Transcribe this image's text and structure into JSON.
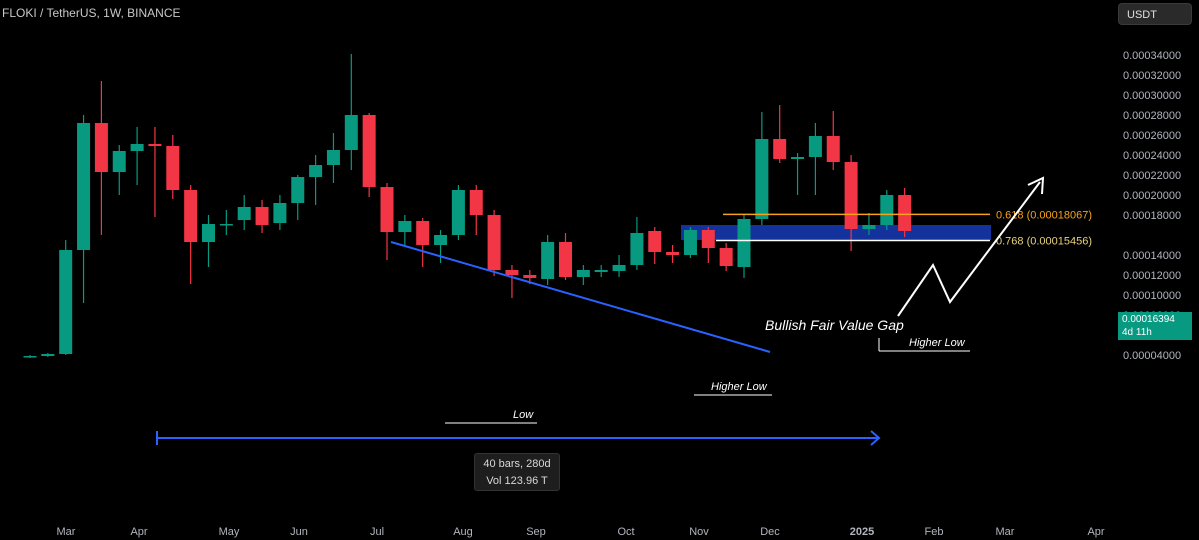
{
  "header": {
    "title": "FLOKI / TetherUS, 1W, BINANCE",
    "currency_button": "USDT"
  },
  "price_tag": {
    "price": "0.00016394",
    "countdown": "4d 11h"
  },
  "range_box": {
    "bars": "40 bars, 280d",
    "volume": "Vol 123.96 T"
  },
  "annotations": {
    "fvg_label": "Bullish Fair Value Gap",
    "fib_618": "0.618 (0.00018067)",
    "fib_768": "0.768 (0.00015456)",
    "higher_low_1": "Higher Low",
    "higher_low_2": "Higher Low",
    "low": "Low"
  },
  "colors": {
    "up": "#089981",
    "down": "#f23645",
    "trendline": "#2962ff",
    "fvg_box": "#1536a8",
    "fib_618": "#f7a21b",
    "fib_768": "#ffffff",
    "background": "#000000"
  },
  "chart_data": {
    "type": "candlestick",
    "ylim": [
      3.6e-05,
      0.000358
    ],
    "y_ticks": [
      "0.00034000",
      "0.00032000",
      "0.00030000",
      "0.00028000",
      "0.00026000",
      "0.00024000",
      "0.00022000",
      "0.00020000",
      "0.00018000",
      "0.00014000",
      "0.00012000",
      "0.00010000",
      "0.00008000",
      "0.00006000",
      "0.00004000"
    ],
    "x_ticks": [
      "Mar",
      "Apr",
      "May",
      "Jun",
      "Jul",
      "Aug",
      "Sep",
      "Oct",
      "Nov",
      "Dec",
      "2025",
      "Feb",
      "Mar",
      "Apr"
    ],
    "candles": [
      {
        "o": 3.8e-05,
        "h": 4e-05,
        "l": 3.7e-05,
        "c": 3.9e-05
      },
      {
        "o": 3.9e-05,
        "h": 4.2e-05,
        "l": 3.8e-05,
        "c": 4.1e-05
      },
      {
        "o": 4.1e-05,
        "h": 0.000155,
        "l": 4e-05,
        "c": 0.000145
      },
      {
        "o": 0.000145,
        "h": 0.00028,
        "l": 9.2e-05,
        "c": 0.000272
      },
      {
        "o": 0.000272,
        "h": 0.000314,
        "l": 0.00016,
        "c": 0.000223
      },
      {
        "o": 0.000223,
        "h": 0.00025,
        "l": 0.0002,
        "c": 0.000244
      },
      {
        "o": 0.000244,
        "h": 0.000268,
        "l": 0.00021,
        "c": 0.000251
      },
      {
        "o": 0.000251,
        "h": 0.000268,
        "l": 0.000178,
        "c": 0.000249
      },
      {
        "o": 0.000249,
        "h": 0.00026,
        "l": 0.000196,
        "c": 0.000205
      },
      {
        "o": 0.000205,
        "h": 0.00021,
        "l": 0.000111,
        "c": 0.000153
      },
      {
        "o": 0.000153,
        "h": 0.00018,
        "l": 0.000128,
        "c": 0.000171
      },
      {
        "o": 0.000171,
        "h": 0.000185,
        "l": 0.00016,
        "c": 0.000171
      },
      {
        "o": 0.000175,
        "h": 0.0002,
        "l": 0.000165,
        "c": 0.000188
      },
      {
        "o": 0.000188,
        "h": 0.000195,
        "l": 0.000162,
        "c": 0.00017
      },
      {
        "o": 0.000172,
        "h": 0.0002,
        "l": 0.000165,
        "c": 0.000192
      },
      {
        "o": 0.000192,
        "h": 0.00022,
        "l": 0.000175,
        "c": 0.000218
      },
      {
        "o": 0.000218,
        "h": 0.00024,
        "l": 0.00019,
        "c": 0.00023
      },
      {
        "o": 0.00023,
        "h": 0.000262,
        "l": 0.000212,
        "c": 0.000245
      },
      {
        "o": 0.000245,
        "h": 0.000341,
        "l": 0.000225,
        "c": 0.00028
      },
      {
        "o": 0.00028,
        "h": 0.000282,
        "l": 0.000198,
        "c": 0.000208
      },
      {
        "o": 0.000208,
        "h": 0.000212,
        "l": 0.000135,
        "c": 0.000163
      },
      {
        "o": 0.000163,
        "h": 0.00018,
        "l": 0.00015,
        "c": 0.000174
      },
      {
        "o": 0.000174,
        "h": 0.000177,
        "l": 0.000128,
        "c": 0.00015
      },
      {
        "o": 0.00015,
        "h": 0.000165,
        "l": 0.000132,
        "c": 0.00016
      },
      {
        "o": 0.00016,
        "h": 0.00021,
        "l": 0.000155,
        "c": 0.000205
      },
      {
        "o": 0.000205,
        "h": 0.00021,
        "l": 0.00016,
        "c": 0.00018
      },
      {
        "o": 0.00018,
        "h": 0.000185,
        "l": 0.000119,
        "c": 0.000125
      },
      {
        "o": 0.000125,
        "h": 0.00013,
        "l": 9.7e-05,
        "c": 0.00012
      },
      {
        "o": 0.00012,
        "h": 0.000125,
        "l": 0.000111,
        "c": 0.000117
      },
      {
        "o": 0.000116,
        "h": 0.00016,
        "l": 0.00011,
        "c": 0.000153
      },
      {
        "o": 0.000153,
        "h": 0.000162,
        "l": 0.000115,
        "c": 0.000118
      },
      {
        "o": 0.000118,
        "h": 0.00013,
        "l": 0.00011,
        "c": 0.000125
      },
      {
        "o": 0.000123,
        "h": 0.00013,
        "l": 0.000118,
        "c": 0.000125
      },
      {
        "o": 0.000124,
        "h": 0.00014,
        "l": 0.000118,
        "c": 0.00013
      },
      {
        "o": 0.00013,
        "h": 0.000178,
        "l": 0.000125,
        "c": 0.000162
      },
      {
        "o": 0.000164,
        "h": 0.000168,
        "l": 0.000131,
        "c": 0.000143
      },
      {
        "o": 0.000143,
        "h": 0.00015,
        "l": 0.000132,
        "c": 0.00014
      },
      {
        "o": 0.00014,
        "h": 0.000168,
        "l": 0.000137,
        "c": 0.000165
      },
      {
        "o": 0.000165,
        "h": 0.000168,
        "l": 0.000132,
        "c": 0.000147
      },
      {
        "o": 0.000147,
        "h": 0.000152,
        "l": 0.000124,
        "c": 0.000129
      },
      {
        "o": 0.000128,
        "h": 0.00018,
        "l": 0.000117,
        "c": 0.000176
      },
      {
        "o": 0.000176,
        "h": 0.000283,
        "l": 0.00017,
        "c": 0.000256
      },
      {
        "o": 0.000256,
        "h": 0.00029,
        "l": 0.000232,
        "c": 0.000236
      },
      {
        "o": 0.000236,
        "h": 0.000242,
        "l": 0.0002,
        "c": 0.000238
      },
      {
        "o": 0.000238,
        "h": 0.000272,
        "l": 0.0002,
        "c": 0.000259
      },
      {
        "o": 0.000259,
        "h": 0.000284,
        "l": 0.000225,
        "c": 0.000233
      },
      {
        "o": 0.000233,
        "h": 0.00024,
        "l": 0.000144,
        "c": 0.000166
      },
      {
        "o": 0.000166,
        "h": 0.000182,
        "l": 0.00016,
        "c": 0.00017
      },
      {
        "o": 0.00017,
        "h": 0.000205,
        "l": 0.000165,
        "c": 0.0002
      },
      {
        "o": 0.0002,
        "h": 0.000207,
        "l": 0.000158,
        "c": 0.000164
      }
    ]
  }
}
